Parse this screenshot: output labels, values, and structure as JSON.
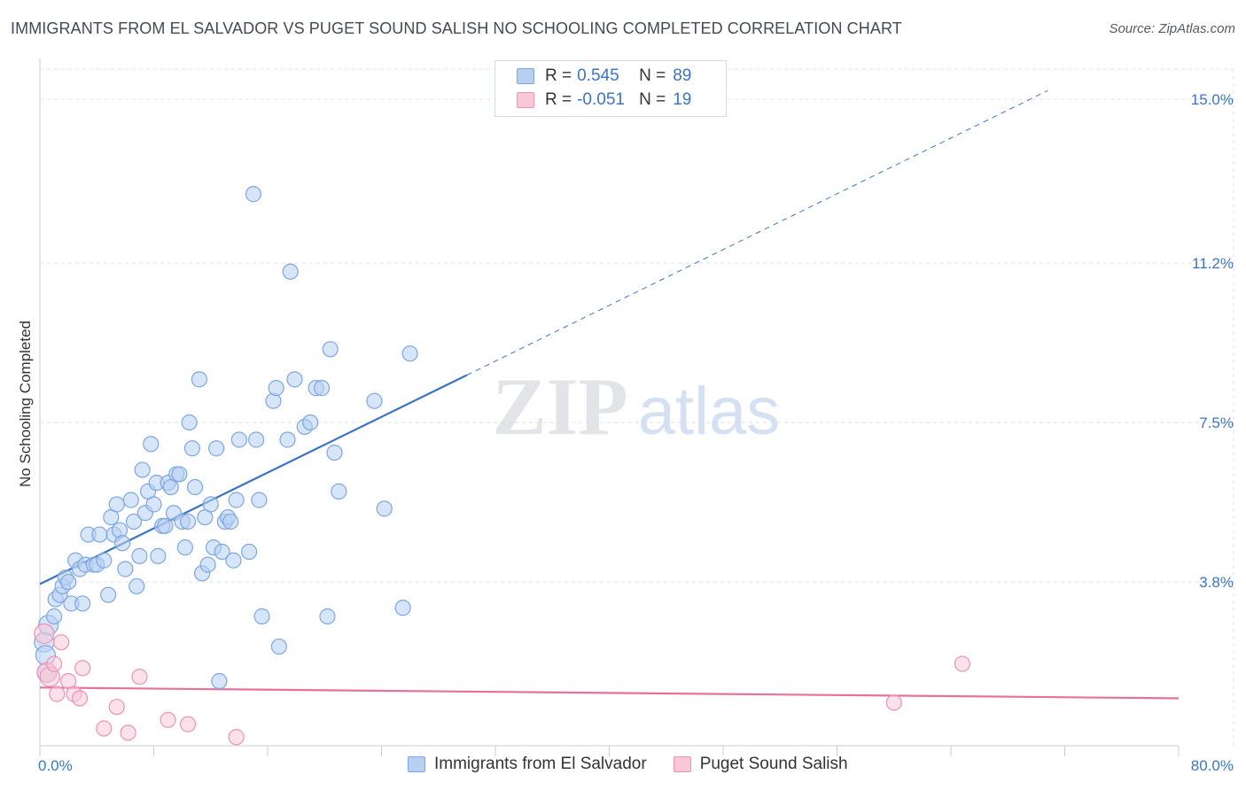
{
  "title": "IMMIGRANTS FROM EL SALVADOR VS PUGET SOUND SALISH NO SCHOOLING COMPLETED CORRELATION CHART",
  "source": "Source: ZipAtlas.com",
  "watermark": {
    "zip": "ZIP",
    "atlas": "atlas"
  },
  "legend": {
    "rows": [
      {
        "r_label": "R =",
        "r_value": "0.545",
        "n_label": "N =",
        "n_value": "89"
      },
      {
        "r_label": "R =",
        "r_value": "-0.051",
        "n_label": "N =",
        "n_value": "19"
      }
    ]
  },
  "bottom_legend": [
    "Immigrants from El Salvador",
    "Puget Sound Salish"
  ],
  "colors": {
    "blue": "#3a75c4",
    "blue_fill": "#b7d0f2",
    "blue_stroke": "#7ea6e0",
    "pink": "#e8709a",
    "pink_fill": "#f8c8d8",
    "pink_stroke": "#ea93b3",
    "grid": "#dde1e6"
  },
  "chart_data": {
    "type": "scatter",
    "title": "IMMIGRANTS FROM EL SALVADOR VS PUGET SOUND SALISH NO SCHOOLING COMPLETED CORRELATION CHART",
    "xlabel": "",
    "ylabel": "No Schooling Completed",
    "xlim": [
      0,
      80
    ],
    "ylim": [
      0,
      15.7
    ],
    "x_tick_labels": [
      "0.0%",
      "80.0%"
    ],
    "y_ticks": [
      3.8,
      7.5,
      11.2,
      15.0
    ],
    "y_tick_labels": [
      "3.8%",
      "7.5%",
      "11.2%",
      "15.0%"
    ],
    "grid": true,
    "legend_position": "top-center",
    "series": [
      {
        "name": "Immigrants from El Salvador",
        "R": 0.545,
        "N": 89,
        "trend": {
          "x0": 0,
          "y0": 3.75,
          "x1": 30.0,
          "y1": 8.6,
          "dash_x1": 70.8,
          "dash_y1": 15.2
        },
        "points": [
          [
            0.3,
            2.4
          ],
          [
            0.5,
            1.7
          ],
          [
            0.6,
            2.8
          ],
          [
            1.0,
            3.0
          ],
          [
            1.1,
            3.4
          ],
          [
            1.4,
            3.5
          ],
          [
            1.6,
            3.7
          ],
          [
            1.8,
            3.9
          ],
          [
            2.0,
            3.8
          ],
          [
            2.2,
            3.3
          ],
          [
            2.5,
            4.3
          ],
          [
            2.8,
            4.1
          ],
          [
            3.0,
            3.3
          ],
          [
            3.2,
            4.2
          ],
          [
            3.4,
            4.9
          ],
          [
            3.8,
            4.2
          ],
          [
            4.0,
            4.2
          ],
          [
            4.2,
            4.9
          ],
          [
            4.5,
            4.3
          ],
          [
            4.8,
            3.5
          ],
          [
            5.0,
            5.3
          ],
          [
            5.2,
            4.9
          ],
          [
            5.4,
            5.6
          ],
          [
            5.6,
            5.0
          ],
          [
            5.8,
            4.7
          ],
          [
            6.0,
            4.1
          ],
          [
            6.4,
            5.7
          ],
          [
            6.6,
            5.2
          ],
          [
            6.8,
            3.7
          ],
          [
            7.0,
            4.4
          ],
          [
            7.2,
            6.4
          ],
          [
            7.4,
            5.4
          ],
          [
            7.6,
            5.9
          ],
          [
            7.8,
            7.0
          ],
          [
            8.0,
            5.6
          ],
          [
            8.2,
            6.1
          ],
          [
            8.3,
            4.4
          ],
          [
            8.6,
            5.1
          ],
          [
            8.8,
            5.1
          ],
          [
            9.0,
            6.1
          ],
          [
            9.2,
            6.0
          ],
          [
            9.4,
            5.4
          ],
          [
            9.6,
            6.3
          ],
          [
            9.8,
            6.3
          ],
          [
            10.0,
            5.2
          ],
          [
            10.2,
            4.6
          ],
          [
            10.4,
            5.2
          ],
          [
            10.5,
            7.5
          ],
          [
            10.7,
            6.9
          ],
          [
            10.9,
            6.0
          ],
          [
            11.2,
            8.5
          ],
          [
            11.4,
            4.0
          ],
          [
            11.6,
            5.3
          ],
          [
            11.8,
            4.2
          ],
          [
            12.0,
            5.6
          ],
          [
            12.2,
            4.6
          ],
          [
            12.4,
            6.9
          ],
          [
            12.6,
            1.5
          ],
          [
            12.8,
            4.5
          ],
          [
            13.0,
            5.2
          ],
          [
            13.2,
            5.3
          ],
          [
            13.4,
            5.2
          ],
          [
            13.6,
            4.3
          ],
          [
            13.8,
            5.7
          ],
          [
            14.0,
            7.1
          ],
          [
            14.7,
            4.5
          ],
          [
            15.0,
            12.8
          ],
          [
            15.2,
            7.1
          ],
          [
            15.4,
            5.7
          ],
          [
            15.6,
            3.0
          ],
          [
            16.4,
            8.0
          ],
          [
            16.6,
            8.3
          ],
          [
            16.8,
            2.3
          ],
          [
            17.4,
            7.1
          ],
          [
            17.6,
            11.0
          ],
          [
            17.9,
            8.5
          ],
          [
            18.6,
            7.4
          ],
          [
            19.0,
            7.5
          ],
          [
            19.4,
            8.3
          ],
          [
            19.8,
            8.3
          ],
          [
            20.2,
            3.0
          ],
          [
            20.4,
            9.2
          ],
          [
            20.7,
            6.8
          ],
          [
            21.0,
            5.9
          ],
          [
            23.5,
            8.0
          ],
          [
            24.2,
            5.5
          ],
          [
            25.5,
            3.2
          ],
          [
            26.0,
            9.1
          ],
          [
            0.4,
            2.1
          ]
        ]
      },
      {
        "name": "Puget Sound Salish",
        "R": -0.051,
        "N": 19,
        "trend": {
          "x0": 0,
          "y0": 1.35,
          "x1": 80,
          "y1": 1.1
        },
        "points": [
          [
            0.3,
            2.6
          ],
          [
            0.5,
            1.7
          ],
          [
            0.7,
            1.6
          ],
          [
            1.0,
            1.9
          ],
          [
            1.2,
            1.2
          ],
          [
            1.5,
            2.4
          ],
          [
            2.0,
            1.5
          ],
          [
            2.4,
            1.2
          ],
          [
            2.8,
            1.1
          ],
          [
            3.0,
            1.8
          ],
          [
            4.5,
            0.4
          ],
          [
            5.4,
            0.9
          ],
          [
            6.2,
            0.3
          ],
          [
            7.0,
            1.6
          ],
          [
            9.0,
            0.6
          ],
          [
            10.4,
            0.5
          ],
          [
            13.8,
            0.2
          ],
          [
            60.0,
            1.0
          ],
          [
            64.8,
            1.9
          ]
        ]
      }
    ]
  }
}
